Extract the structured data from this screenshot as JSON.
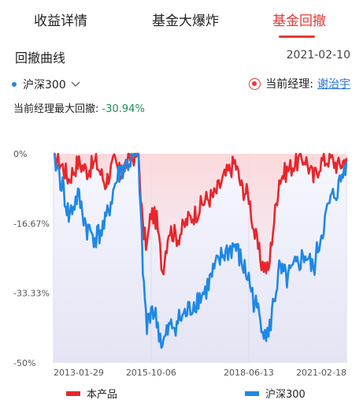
{
  "tabs": [
    {
      "label": "收益详情",
      "active": false
    },
    {
      "label": "基金大爆炸",
      "active": false
    },
    {
      "label": "基金回撤",
      "active": true
    }
  ],
  "header": {
    "title": "回撤曲线",
    "date": "2021-02-10"
  },
  "benchmark": {
    "selected": "沪深300"
  },
  "manager": {
    "label": "当前经理:",
    "name": "谢治宇"
  },
  "max_drawdown": {
    "label": "当前经理最大回撤:",
    "value": "-30.94%"
  },
  "colors": {
    "product": "#e8262b",
    "benchmark": "#1e88e5",
    "accent": "#e53935"
  },
  "chart_data": {
    "type": "line",
    "y_ticks": [
      "0%",
      "-16.67%",
      "-33.33%",
      "-50%"
    ],
    "x_ticks": [
      "2013-01-29",
      "2015-10-06",
      "2018-06-13",
      "2021-02-18"
    ],
    "ylim": [
      -50,
      0
    ],
    "xlim": [
      "2013-01-29",
      "2021-02-18"
    ],
    "grid": "vertical",
    "legend_position": "bottom",
    "series": [
      {
        "name": "本产品",
        "x": [
          "2013-01-29",
          "2013-05-01",
          "2013-07-01",
          "2013-10-01",
          "2014-01-01",
          "2014-04-01",
          "2014-07-01",
          "2014-10-01",
          "2014-12-01",
          "2015-03-01",
          "2015-06-01",
          "2015-07-15",
          "2015-08-25",
          "2015-10-06",
          "2015-12-01",
          "2016-01-28",
          "2016-04-01",
          "2016-07-01",
          "2016-10-01",
          "2017-01-01",
          "2017-04-01",
          "2017-07-01",
          "2017-10-01",
          "2018-01-25",
          "2018-04-01",
          "2018-06-13",
          "2018-08-01",
          "2018-10-18",
          "2018-12-28",
          "2019-02-01",
          "2019-04-15",
          "2019-07-01",
          "2019-10-01",
          "2020-01-01",
          "2020-03-23",
          "2020-06-01",
          "2020-09-01",
          "2020-12-01",
          "2021-02-18"
        ],
        "values": [
          0,
          -3,
          -6,
          -2,
          -4,
          -2,
          -7,
          -2,
          -5,
          -1,
          0,
          -18,
          -22,
          -14,
          -16,
          -28,
          -18,
          -20,
          -16,
          -14,
          -11,
          -10,
          -6,
          -2,
          -8,
          -10,
          -18,
          -26,
          -28,
          -20,
          -6,
          -4,
          -2,
          -1,
          -6,
          -2,
          -1,
          -3,
          -1
        ]
      },
      {
        "name": "沪深300",
        "x": [
          "2013-01-29",
          "2013-05-01",
          "2013-07-01",
          "2013-10-01",
          "2014-01-01",
          "2014-04-01",
          "2014-07-01",
          "2014-10-01",
          "2014-12-01",
          "2015-03-01",
          "2015-06-01",
          "2015-07-15",
          "2015-08-25",
          "2015-10-06",
          "2015-12-01",
          "2016-01-28",
          "2016-04-01",
          "2016-07-01",
          "2016-10-01",
          "2017-01-01",
          "2017-04-01",
          "2017-07-01",
          "2017-10-01",
          "2018-01-25",
          "2018-04-01",
          "2018-06-13",
          "2018-08-01",
          "2018-10-18",
          "2018-12-28",
          "2019-02-01",
          "2019-04-15",
          "2019-07-01",
          "2019-10-01",
          "2020-01-01",
          "2020-03-23",
          "2020-06-01",
          "2020-09-01",
          "2020-12-01",
          "2021-02-18"
        ],
        "values": [
          0,
          -8,
          -15,
          -10,
          -18,
          -20,
          -17,
          -8,
          -4,
          -2,
          0,
          -28,
          -42,
          -36,
          -40,
          -46,
          -42,
          -40,
          -38,
          -35,
          -33,
          -28,
          -24,
          -22,
          -26,
          -30,
          -35,
          -40,
          -44,
          -38,
          -28,
          -30,
          -27,
          -24,
          -28,
          -20,
          -12,
          -8,
          -2
        ]
      }
    ]
  }
}
